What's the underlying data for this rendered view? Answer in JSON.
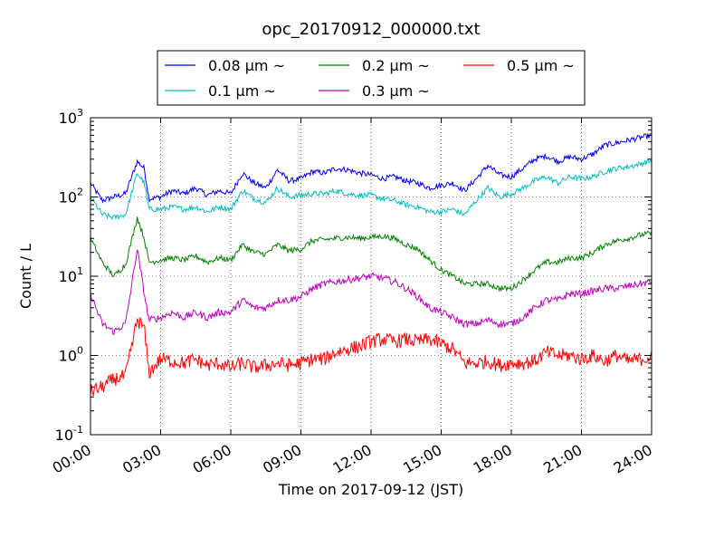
{
  "chart_data": {
    "type": "line",
    "title": "opc_20170912_000000.txt",
    "xlabel": "Time on 2017-09-12 (JST)",
    "ylabel": "Count / L",
    "yscale": "log",
    "ylim": [
      0.1,
      1000
    ],
    "xlim": [
      "00:00",
      "24:00"
    ],
    "x_ticks": [
      "00:00",
      "03:00",
      "06:00",
      "09:00",
      "12:00",
      "15:00",
      "18:00",
      "21:00",
      "24:00"
    ],
    "y_ticks": [
      {
        "base": "10",
        "exp": "-1",
        "value": 0.1
      },
      {
        "base": "10",
        "exp": "0",
        "value": 1
      },
      {
        "base": "10",
        "exp": "1",
        "value": 10
      },
      {
        "base": "10",
        "exp": "2",
        "value": 100
      },
      {
        "base": "10",
        "exp": "3",
        "value": 1000
      }
    ],
    "grid": true,
    "legend_position": "top-center",
    "legend": [
      {
        "text": "0.08 μm ~",
        "color": "#0000ff"
      },
      {
        "text": "0.2 μm ~",
        "color": "#008000"
      },
      {
        "text": "0.5 μm ~",
        "color": "#ff0000"
      },
      {
        "text": "0.1 μm ~",
        "color": "#00bfbf"
      },
      {
        "text": "0.3 μm ~",
        "color": "#bf00bf"
      }
    ],
    "x_hours": [
      0,
      0.5,
      1,
      1.5,
      2,
      2.3,
      2.5,
      3,
      3.5,
      4,
      4.5,
      5,
      5.5,
      6,
      6.5,
      7,
      7.5,
      8,
      8.5,
      9,
      9.5,
      10,
      10.5,
      11,
      11.5,
      12,
      12.5,
      13,
      13.5,
      14,
      14.5,
      15,
      15.5,
      16,
      16.5,
      17,
      17.5,
      18,
      18.5,
      19,
      19.5,
      20,
      20.5,
      21,
      21.5,
      22,
      22.5,
      23,
      23.5,
      24
    ],
    "series": [
      {
        "name": "0.08 μm ~",
        "color": "#0000ff",
        "values": [
          150,
          90,
          100,
          110,
          280,
          230,
          95,
          100,
          120,
          110,
          130,
          105,
          120,
          110,
          200,
          150,
          130,
          220,
          160,
          170,
          210,
          200,
          230,
          220,
          200,
          190,
          170,
          180,
          160,
          150,
          130,
          140,
          150,
          120,
          170,
          250,
          190,
          180,
          230,
          300,
          330,
          280,
          320,
          300,
          350,
          450,
          480,
          520,
          560,
          600
        ]
      },
      {
        "name": "0.1 μm ~",
        "color": "#00bfbf",
        "values": [
          100,
          60,
          55,
          60,
          200,
          150,
          70,
          70,
          75,
          70,
          75,
          65,
          75,
          70,
          120,
          95,
          85,
          130,
          100,
          105,
          110,
          110,
          120,
          110,
          105,
          105,
          95,
          90,
          80,
          75,
          65,
          65,
          70,
          60,
          90,
          130,
          100,
          110,
          130,
          160,
          180,
          150,
          180,
          170,
          180,
          210,
          230,
          240,
          260,
          290
        ]
      },
      {
        "name": "0.2 μm ~",
        "color": "#008000",
        "values": [
          30,
          15,
          10,
          14,
          55,
          30,
          15,
          16,
          17,
          16,
          18,
          15,
          17,
          16,
          25,
          20,
          19,
          25,
          21,
          22,
          28,
          29,
          30,
          31,
          30,
          31,
          32,
          30,
          25,
          22,
          16,
          12,
          10,
          8,
          8,
          8,
          7,
          7,
          9,
          12,
          15,
          15,
          17,
          17,
          20,
          25,
          28,
          30,
          33,
          35
        ]
      },
      {
        "name": "0.3 μm ~",
        "color": "#bf00bf",
        "values": [
          6,
          2.5,
          2,
          2.5,
          22,
          6,
          2.8,
          3,
          3.5,
          3,
          3.5,
          3,
          3.5,
          3.5,
          5,
          4,
          4,
          5,
          5,
          5.5,
          7,
          8,
          8.5,
          9,
          9.5,
          10,
          9.5,
          8.5,
          7,
          5.5,
          4,
          3.5,
          3,
          2.5,
          2.5,
          2.8,
          2.5,
          2.5,
          3,
          4,
          5,
          5,
          6,
          6,
          6.5,
          7,
          7,
          7.5,
          8,
          8.5
        ]
      },
      {
        "name": "0.5 μm ~",
        "color": "#ff0000",
        "values": [
          0.35,
          0.4,
          0.5,
          0.55,
          2.8,
          2.2,
          0.6,
          0.9,
          0.85,
          0.8,
          0.9,
          0.75,
          0.8,
          0.7,
          0.8,
          0.7,
          0.75,
          0.8,
          0.75,
          0.8,
          0.9,
          0.9,
          1.1,
          1.2,
          1.3,
          1.5,
          1.6,
          1.5,
          1.6,
          1.5,
          1.6,
          1.4,
          1.2,
          0.8,
          0.8,
          0.85,
          0.75,
          0.8,
          0.8,
          0.85,
          1.1,
          1.0,
          1.0,
          0.9,
          1.0,
          0.85,
          1.0,
          0.85,
          0.9,
          0.95
        ]
      }
    ]
  }
}
